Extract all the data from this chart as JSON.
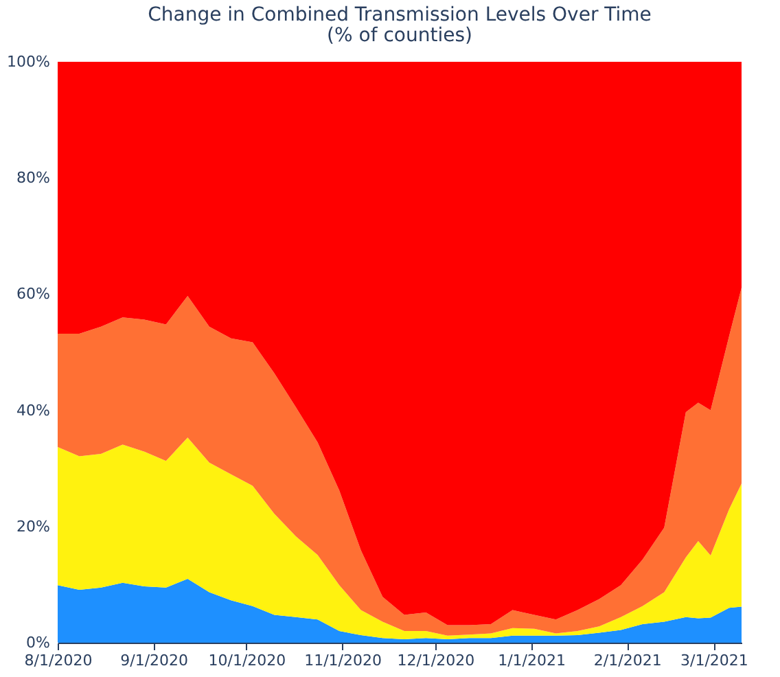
{
  "chart_data": {
    "type": "area",
    "stacked": true,
    "title": "Change in Combined Transmission Levels Over Time",
    "subtitle": "(% of counties)",
    "x": [
      "2020-08-01",
      "2020-08-08",
      "2020-08-15",
      "2020-08-22",
      "2020-08-29",
      "2020-09-05",
      "2020-09-12",
      "2020-09-19",
      "2020-09-26",
      "2020-10-03",
      "2020-10-10",
      "2020-10-17",
      "2020-10-24",
      "2020-10-31",
      "2020-11-07",
      "2020-11-14",
      "2020-11-21",
      "2020-11-28",
      "2020-12-05",
      "2020-12-12",
      "2020-12-19",
      "2020-12-26",
      "2021-01-02",
      "2021-01-09",
      "2021-01-16",
      "2021-01-23",
      "2021-01-30",
      "2021-02-06",
      "2021-02-13",
      "2021-02-20",
      "2021-02-24",
      "2021-02-28",
      "2021-03-06",
      "2021-03-10"
    ],
    "series": [
      {
        "color": "#1e90ff",
        "values": [
          9.9,
          9.1,
          9.5,
          10.3,
          9.7,
          9.5,
          11.0,
          8.7,
          7.3,
          6.3,
          4.8,
          4.4,
          4.0,
          2.0,
          1.3,
          0.8,
          0.6,
          0.8,
          0.6,
          0.8,
          0.8,
          1.2,
          1.2,
          1.2,
          1.3,
          1.7,
          2.2,
          3.2,
          3.6,
          4.4,
          4.2,
          4.3,
          6.0,
          6.2
        ]
      },
      {
        "color": "#fff20f",
        "values": [
          23.8,
          23.0,
          23.0,
          23.8,
          23.2,
          21.8,
          24.3,
          22.3,
          21.7,
          20.7,
          17.4,
          13.9,
          11.1,
          7.9,
          4.3,
          2.8,
          1.4,
          1.2,
          0.6,
          0.6,
          0.8,
          1.3,
          1.2,
          0.4,
          0.7,
          1.1,
          2.2,
          3.1,
          5.1,
          10.3,
          13.3,
          10.7,
          17.0,
          21.2
        ]
      },
      {
        "color": "#ff7034",
        "values": [
          19.5,
          21.1,
          21.9,
          21.9,
          22.7,
          23.5,
          24.4,
          23.4,
          23.4,
          24.7,
          24.2,
          22.2,
          19.4,
          16.3,
          10.3,
          4.3,
          2.8,
          3.2,
          1.8,
          1.6,
          1.6,
          3.1,
          2.4,
          2.4,
          3.6,
          4.7,
          5.5,
          8.0,
          11.1,
          25.0,
          23.8,
          25.0,
          29.8,
          33.7
        ]
      },
      {
        "color": "#ff0000",
        "values": [
          46.8,
          46.8,
          45.6,
          44.0,
          44.4,
          45.2,
          40.3,
          45.6,
          47.6,
          48.3,
          53.6,
          59.5,
          65.5,
          73.8,
          84.1,
          92.1,
          95.2,
          94.8,
          97.0,
          97.0,
          96.8,
          94.4,
          95.2,
          96.0,
          94.4,
          92.5,
          90.1,
          85.7,
          80.2,
          60.3,
          58.7,
          60.0,
          47.2,
          38.9
        ]
      }
    ],
    "xlim": [
      "2020-08-01",
      "2021-03-10"
    ],
    "xticks": [
      {
        "value": "2020-08-01",
        "label": "8/1/2020"
      },
      {
        "value": "2020-09-01",
        "label": "9/1/2020"
      },
      {
        "value": "2020-10-01",
        "label": "10/1/2020"
      },
      {
        "value": "2020-11-01",
        "label": "11/1/2020"
      },
      {
        "value": "2020-12-01",
        "label": "12/1/2020"
      },
      {
        "value": "2021-01-01",
        "label": "1/1/2021"
      },
      {
        "value": "2021-02-01",
        "label": "2/1/2021"
      },
      {
        "value": "2021-03-01",
        "label": "3/1/2021"
      }
    ],
    "ylim": [
      0,
      100
    ],
    "yticks": [
      {
        "value": 0,
        "label": "0%"
      },
      {
        "value": 20,
        "label": "20%"
      },
      {
        "value": 40,
        "label": "40%"
      },
      {
        "value": 60,
        "label": "60%"
      },
      {
        "value": 80,
        "label": "80%"
      },
      {
        "value": 100,
        "label": "100%"
      }
    ],
    "grid": false,
    "legend": false
  }
}
